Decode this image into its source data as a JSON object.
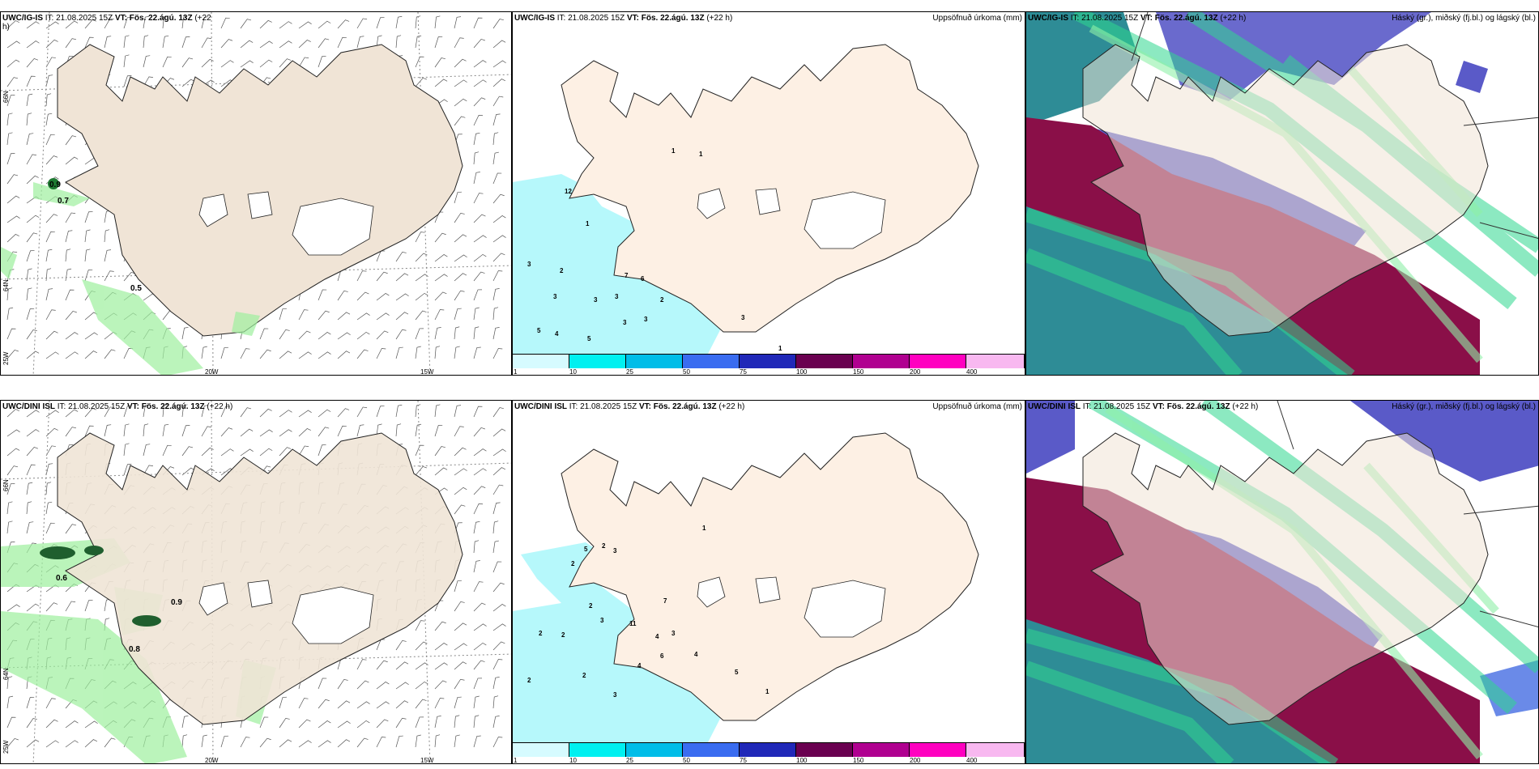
{
  "panels": {
    "p1": {
      "model": "UWC/IG-IS",
      "it_label": "IT:",
      "it": "21.08.2025 15Z",
      "vt_label": "VT:",
      "vt": "Fös. 22.ágú. 13Z",
      "lead": "(+22",
      "lead2": "h)"
    },
    "p2": {
      "model": "UWC/IG-IS",
      "it_label": "IT:",
      "it": "21.08.2025 15Z",
      "vt_label": "VT:",
      "vt": "Fös. 22.ágú. 13Z",
      "lead": "(+22 h)",
      "right": "Uppsöfnuð úrkoma (mm)"
    },
    "p3": {
      "model": "UWC/IG-IS",
      "it_label": "IT:",
      "it": "21.08.2025 15Z",
      "vt_label": "VT:",
      "vt": "Fös. 22.ágú. 13Z",
      "lead": "(+22 h)",
      "right": "Háský (gr.), miðský (fj.bl.) og lágský (bl.)"
    },
    "p4": {
      "model": "UWC/DINI ISL",
      "it_label": "IT:",
      "it": "21.08.2025 15Z",
      "vt_label": "VT:",
      "vt": "Fös. 22.ágú. 13Z",
      "lead": "(+22 h)"
    },
    "p5": {
      "model": "UWC/DINI ISL",
      "it_label": "IT:",
      "it": "21.08.2025 15Z",
      "vt_label": "VT:",
      "vt": "Fös. 22.ágú. 13Z",
      "lead": "(+22 h)",
      "right": "Uppsöfnuð úrkoma (mm)"
    },
    "p6": {
      "model": "UWC/DINI ISL",
      "it_label": "IT:",
      "it": "21.08.2025 15Z",
      "vt_label": "VT:",
      "vt": "Fös. 22.ágú. 13Z",
      "lead": "(+22 h)",
      "right": "Háský (gr.), miðský (fj.bl.) og lágský (bl.)"
    }
  },
  "axes": {
    "lat66": "66N",
    "lat64": "64N",
    "lon25": "25W",
    "lon20": "20W",
    "lon15": "15W"
  },
  "colorbar": {
    "ticks": [
      "1",
      "10",
      "25",
      "50",
      "75",
      "100",
      "150",
      "200",
      "400"
    ],
    "colors": [
      "#d6fbff",
      "#00f0f0",
      "#00bde8",
      "#3a6cf0",
      "#2028b8",
      "#6a0050",
      "#b00090",
      "#ff00c0",
      "#f8b8f0"
    ]
  },
  "top_wind_labels": [
    "0.9",
    "0.7",
    "0.5"
  ],
  "bottom_wind_labels": [
    "0.6",
    "0.9",
    "0.8"
  ],
  "top_precip_labels": [
    "12",
    "1",
    "1",
    "1",
    "3",
    "2",
    "3",
    "3",
    "3",
    "2",
    "3",
    "7",
    "6",
    "5",
    "4",
    "5",
    "3",
    "3",
    "1"
  ],
  "bottom_precip_labels": [
    "1",
    "5",
    "2",
    "3",
    "2",
    "2",
    "3",
    "11",
    "7",
    "2",
    "2",
    "4",
    "3",
    "6",
    "4",
    "4",
    "5",
    "2",
    "2",
    "3",
    "1"
  ],
  "colors": {
    "land": "#f0e4d6",
    "land2": "#fdf0e4",
    "precip": "#b6f8fb",
    "cloud_high": "#2e8c96",
    "cloud_mid": "#8a0f48",
    "cloud_low": "#5a5ac8",
    "green": "#30d890"
  }
}
